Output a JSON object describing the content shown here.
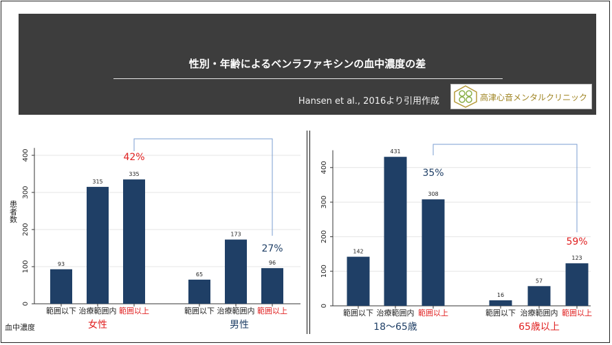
{
  "header": {
    "title": "性別・年齢によるベンラファキシンの血中濃度の差",
    "source": "Hansen et al., 2016より引用作成",
    "logo_text": "高津心音メンタルクリニック"
  },
  "chart_data": [
    {
      "type": "bar",
      "ylabel": "患者数",
      "xlabel": "血中濃度",
      "ylim": [
        0,
        420
      ],
      "yticks": [
        0,
        100,
        200,
        300,
        400
      ],
      "grid": true,
      "groups": [
        {
          "name": "女性",
          "categories": [
            "範囲以下",
            "治療範囲内",
            "範囲以上"
          ],
          "values": [
            93,
            315,
            335
          ],
          "percent_label": "42%"
        },
        {
          "name": "男性",
          "categories": [
            "範囲以下",
            "治療範囲内",
            "範囲以上"
          ],
          "values": [
            65,
            173,
            96
          ],
          "percent_label": "27%"
        }
      ],
      "colors": {
        "bar": "#1f3f66",
        "highlight": "#e02020",
        "accent": "#1f3f66",
        "connector": "#7a9ed1"
      }
    },
    {
      "type": "bar",
      "ylim": [
        0,
        450
      ],
      "yticks": [
        0,
        100,
        200,
        300,
        400
      ],
      "grid": true,
      "groups": [
        {
          "name": "18～65歳",
          "categories": [
            "範囲以下",
            "治療範囲内",
            "範囲以上"
          ],
          "values": [
            142,
            431,
            308
          ],
          "percent_label": "35%"
        },
        {
          "name": "65歳以上",
          "categories": [
            "範囲以下",
            "治療範囲内",
            "範囲以上"
          ],
          "values": [
            16,
            57,
            123
          ],
          "percent_label": "59%"
        }
      ],
      "colors": {
        "bar": "#1f3f66",
        "highlight": "#e02020",
        "accent": "#1f3f66",
        "connector": "#7a9ed1"
      }
    }
  ]
}
